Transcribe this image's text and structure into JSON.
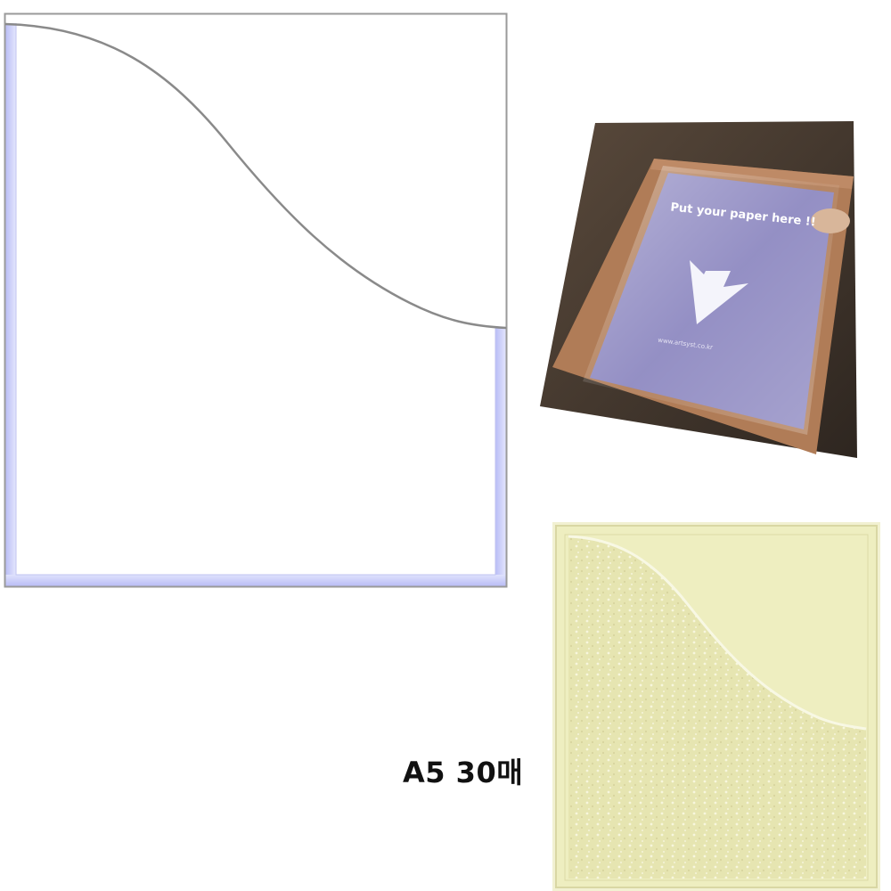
{
  "photo": {
    "headline": "Put your paper here !!",
    "url": "www.artsyst.co.kr"
  },
  "product": {
    "size_label": "A5 30매"
  },
  "colors": {
    "pocket_edge_blue": "#c9cdfa",
    "frame_brown": "#b07c57",
    "paper_purple": "#8c87c0",
    "sample_yellow": "#eeeec0"
  }
}
